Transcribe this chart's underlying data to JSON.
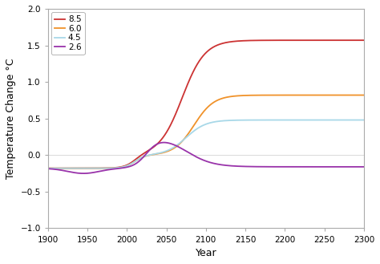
{
  "title": "",
  "xlabel": "Year",
  "ylabel": "Temperature Change °C",
  "xlim": [
    1900,
    2300
  ],
  "ylim": [
    -1,
    2
  ],
  "yticks": [
    -1,
    -0.5,
    0,
    0.5,
    1,
    1.5,
    2
  ],
  "xticks": [
    1900,
    1950,
    2000,
    2050,
    2100,
    2150,
    2200,
    2250,
    2300
  ],
  "legend_labels": [
    "8.5",
    "6.0",
    "4.5",
    "2.6"
  ],
  "colors": {
    "8.5": "#cc3333",
    "6.0": "#f0922a",
    "4.5": "#a8d8e8",
    "2.6": "#9933aa"
  },
  "background_color": "#ffffff",
  "line_width": 1.3,
  "figsize": [
    4.74,
    3.29
  ],
  "dpi": 100
}
